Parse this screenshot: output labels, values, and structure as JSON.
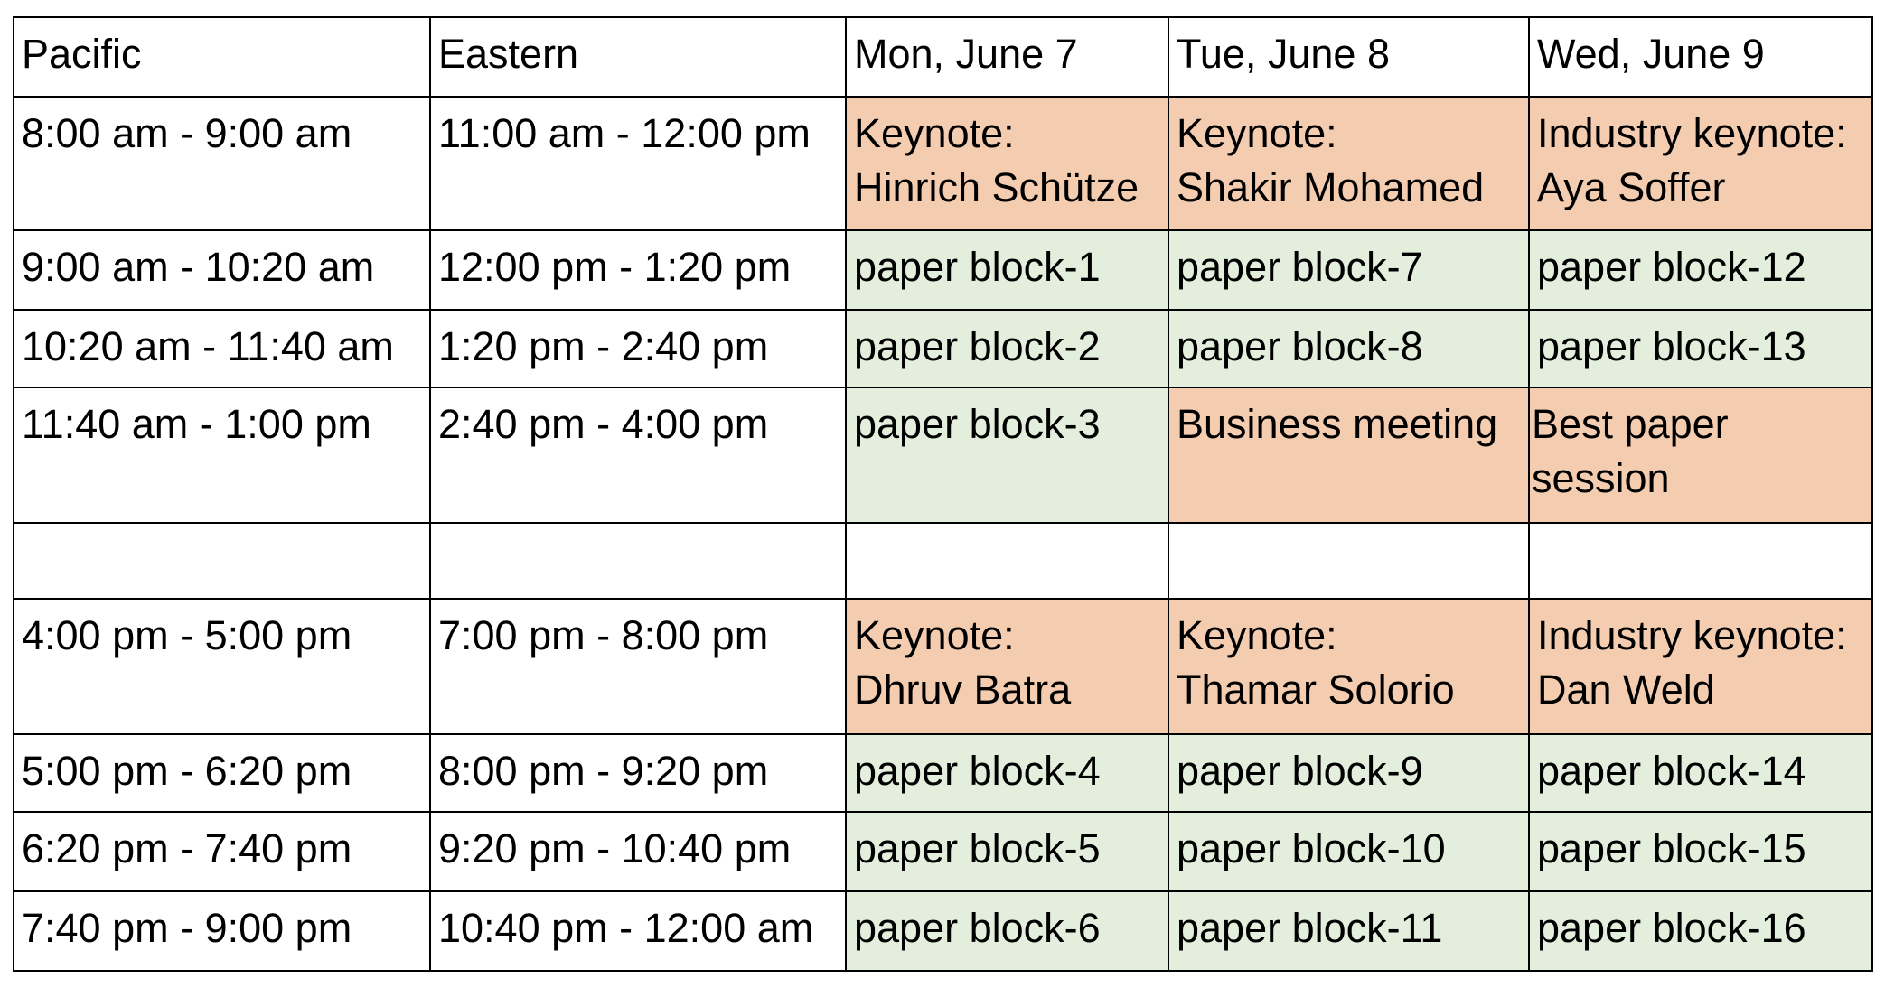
{
  "schedule": {
    "headers": {
      "pacific": "Pacific",
      "eastern": "Eastern",
      "mon": "Mon, June 7",
      "tue": "Tue, June 8",
      "wed": "Wed, June 9"
    },
    "rows": [
      {
        "pacific": "8:00 am - 9:00 am",
        "eastern": "11:00 am - 12:00 pm",
        "mon": [
          "Keynote:",
          "Hinrich Schütze"
        ],
        "tue": [
          "Keynote:",
          "Shakir Mohamed"
        ],
        "wed": [
          "Industry keynote:",
          "Aya Soffer"
        ]
      },
      {
        "pacific": "9:00 am - 10:20 am",
        "eastern": "12:00 pm - 1:20 pm",
        "mon": "paper block-1",
        "tue": "paper block-7",
        "wed": "paper block-12"
      },
      {
        "pacific": "10:20 am - 11:40 am",
        "eastern": "1:20 pm - 2:40 pm",
        "mon": "paper block-2",
        "tue": "paper block-8",
        "wed": "paper block-13"
      },
      {
        "pacific": "11:40 am - 1:00 pm",
        "eastern": "2:40 pm - 4:00 pm",
        "mon": "paper block-3",
        "tue": "Business meeting",
        "wed": [
          "Best paper",
          "session"
        ]
      },
      {
        "pacific": "",
        "eastern": "",
        "mon": "",
        "tue": "",
        "wed": ""
      },
      {
        "pacific": "4:00 pm - 5:00 pm",
        "eastern": "7:00 pm - 8:00 pm",
        "mon": [
          "Keynote:",
          "Dhruv Batra"
        ],
        "tue": [
          "Keynote:",
          "Thamar Solorio"
        ],
        "wed": [
          "Industry keynote:",
          "Dan Weld"
        ]
      },
      {
        "pacific": "5:00 pm - 6:20 pm",
        "eastern": "8:00 pm - 9:20 pm",
        "mon": "paper block-4",
        "tue": "paper block-9",
        "wed": "paper block-14"
      },
      {
        "pacific": "6:20 pm - 7:40 pm",
        "eastern": "9:20 pm - 10:40 pm",
        "mon": "paper block-5",
        "tue": "paper block-10",
        "wed": "paper block-15"
      },
      {
        "pacific": "7:40 pm - 9:00 pm",
        "eastern": "10:40 pm - 12:00 am",
        "mon": "paper block-6",
        "tue": "paper block-11",
        "wed": "paper block-16"
      }
    ]
  },
  "colors": {
    "keynote": "#f4ccb0",
    "paper_block": "#e3eedd",
    "border": "#000000"
  }
}
